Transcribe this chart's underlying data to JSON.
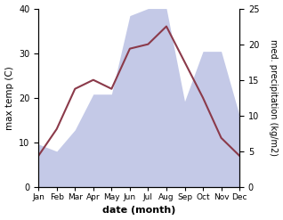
{
  "months": [
    "Jan",
    "Feb",
    "Mar",
    "Apr",
    "May",
    "Jun",
    "Jul",
    "Aug",
    "Sep",
    "Oct",
    "Nov",
    "Dec"
  ],
  "max_temp": [
    7,
    13,
    22,
    24,
    22,
    31,
    32,
    36,
    28,
    20,
    11,
    7
  ],
  "precipitation": [
    6,
    5,
    8,
    13,
    13,
    24,
    25,
    25,
    12,
    19,
    19,
    10
  ],
  "temp_ylim": [
    0,
    40
  ],
  "precip_ylim": [
    0,
    25
  ],
  "temp_color": "#8b3a4a",
  "precip_fill_color": "#b0b8e0",
  "precip_fill_alpha": 0.75,
  "xlabel": "date (month)",
  "ylabel_left": "max temp (C)",
  "ylabel_right": "med. precipitation (kg/m2)",
  "figsize": [
    3.18,
    2.47
  ],
  "dpi": 100
}
